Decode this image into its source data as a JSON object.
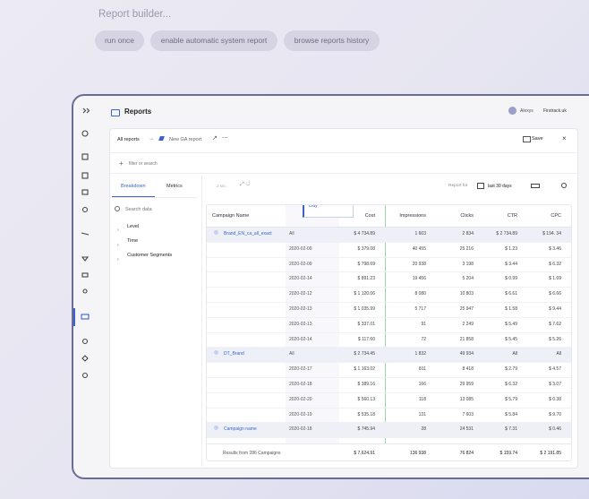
{
  "title": "Report builder...",
  "actions": [
    "run once",
    "enable automatic system report",
    "browse reports history"
  ],
  "app": {
    "section": "Reports",
    "user": "Alexys",
    "account": "Firstrack.uk"
  },
  "breadcrumb": [
    "All reports",
    "New GA report"
  ],
  "save": "Save",
  "filter": "filter or search",
  "tabs": [
    "Breakdown",
    "Metrics"
  ],
  "search": "Search data",
  "tree": [
    "Level",
    "Time",
    "Customer Segments"
  ],
  "toolbar": {
    "zoom": "2 sm.",
    "report_for": "Report for",
    "range": "last 30 days"
  },
  "table": {
    "columns": [
      "Campaign Name",
      "Day",
      "Cost",
      "Impressions",
      "Clicks",
      "CTR",
      "CPC"
    ],
    "groups": [
      {
        "name": "Brand_EN_ca_all_exact",
        "rows": [
          [
            "All",
            "$ 4 734.89",
            "1 603",
            "2 834",
            "$ 2 734.89",
            "$ 194. 34"
          ],
          [
            "2020-02-09",
            "$ 379.08",
            "40 455",
            "25 216",
            "$ 1.23",
            "$ 3.46"
          ],
          [
            "2020-02-09",
            "$ 798.69",
            "20 938",
            "3 198",
            "$ 3.44",
            "$ 6.32"
          ],
          [
            "2020-02-14",
            "$ 891.23",
            "19 456",
            "5 204",
            "$ 0.99",
            "$ 1.69"
          ],
          [
            "2020-02-12",
            "$ 1 120.06",
            "8 080",
            "10 803",
            "$ 6.61",
            "$ 6.66"
          ],
          [
            "2020-02-13",
            "$ 1 035.99",
            "5 717",
            "25 947",
            "$ 1.58",
            "$ 9.44"
          ],
          [
            "2020-02-13",
            "$ 337.01",
            "91",
            "2 249",
            "$ 5.49",
            "$ 7.62"
          ],
          [
            "2020-02-14",
            "$ 117.60",
            "72",
            "21 858",
            "$ 5.45",
            "$ 5.26"
          ]
        ]
      },
      {
        "name": "DT_Brand",
        "rows": [
          [
            "All",
            "$ 2 734.45",
            "1 832",
            "49 934",
            "All",
            "All"
          ],
          [
            "2020-02-17",
            "$ 1 163.02",
            "811",
            "8 418",
            "$ 2.79",
            "$ 4.57"
          ],
          [
            "2020-02-18",
            "$ 389.16",
            "166",
            "29 959",
            "$ 6.32",
            "$ 3.07"
          ],
          [
            "2020-02-20",
            "$ 560.13",
            "118",
            "13 085",
            "$ 5.79",
            "$ 0.38"
          ],
          [
            "2020-02-19",
            "$ 535.18",
            "131",
            "7 603",
            "$ 5.84",
            "$ 9.70"
          ]
        ]
      },
      {
        "name": "Campaign name",
        "rows": [
          [
            "2020-02-18",
            "$ 745.94",
            "28",
            "24 531",
            "$ 7.31",
            "$ 0.46"
          ]
        ]
      }
    ],
    "footer": {
      "label": "Results from 286 Campaigns",
      "values": [
        "$ 7,624.91",
        "136 938",
        "76 824",
        "$ 159.74",
        "$ 2 191.85"
      ]
    }
  }
}
